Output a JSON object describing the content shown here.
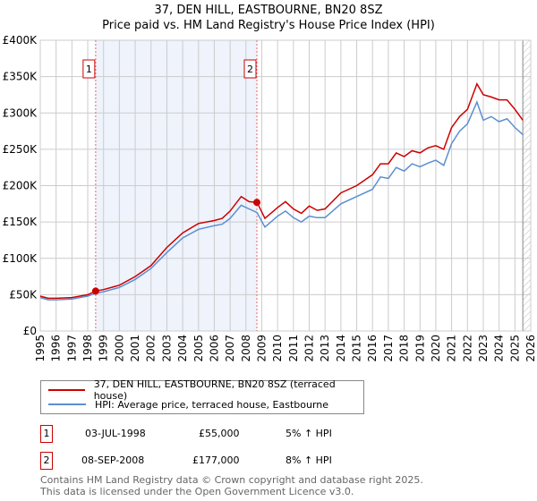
{
  "header": {
    "title_line1": "37, DEN HILL, EASTBOURNE, BN20 8SZ",
    "title_line2": "Price paid vs. HM Land Registry's House Price Index (HPI)"
  },
  "legend": {
    "red_label": "37, DEN HILL, EASTBOURNE, BN20 8SZ (terraced house)",
    "blue_label": "HPI: Average price, terraced house, Eastbourne"
  },
  "transactions": [
    {
      "num": "1",
      "date": "03-JUL-1998",
      "price": "£55,000",
      "hpi": "5% ↑ HPI"
    },
    {
      "num": "2",
      "date": "08-SEP-2008",
      "price": "£177,000",
      "hpi": "8% ↑ HPI"
    }
  ],
  "footer": {
    "line1": "Contains HM Land Registry data © Crown copyright and database right 2025.",
    "line2": "This data is licensed under the Open Government Licence v3.0."
  },
  "colors": {
    "red": "#cc0000",
    "blue": "#5b8fd0",
    "shade": "#eef3fc"
  },
  "chart_data": {
    "type": "line",
    "title": "Price paid vs. HM Land Registry's House Price Index (HPI)",
    "xlim": [
      1995,
      2026
    ],
    "ylim": [
      0,
      400000
    ],
    "x_ticks": [
      "1995",
      "1996",
      "1997",
      "1998",
      "1999",
      "2000",
      "2001",
      "2002",
      "2003",
      "2004",
      "2005",
      "2006",
      "2007",
      "2008",
      "2009",
      "2010",
      "2011",
      "2012",
      "2013",
      "2014",
      "2015",
      "2016",
      "2017",
      "2018",
      "2019",
      "2020",
      "2021",
      "2022",
      "2023",
      "2024",
      "2025",
      "2026"
    ],
    "y_ticks": [
      {
        "v": 0,
        "label": "£0"
      },
      {
        "v": 50000,
        "label": "£50K"
      },
      {
        "v": 100000,
        "label": "£100K"
      },
      {
        "v": 150000,
        "label": "£150K"
      },
      {
        "v": 200000,
        "label": "£200K"
      },
      {
        "v": 250000,
        "label": "£250K"
      },
      {
        "v": 300000,
        "label": "£300K"
      },
      {
        "v": 350000,
        "label": "£350K"
      },
      {
        "v": 400000,
        "label": "£400K"
      }
    ],
    "shaded_range": [
      1998.5,
      2008.69
    ],
    "hatch_from": 2025.5,
    "markers": [
      {
        "label": "1",
        "x": 1998.5,
        "y": 55000
      },
      {
        "label": "2",
        "x": 2008.69,
        "y": 177000
      }
    ],
    "series": [
      {
        "name": "37, DEN HILL, EASTBOURNE, BN20 8SZ (terraced house)",
        "color": "#cc0000",
        "x": [
          1995,
          1995.5,
          1996,
          1997,
          1998,
          1998.5,
          1999,
          2000,
          2001,
          2002,
          2003,
          2003.5,
          2004,
          2005,
          2006,
          2006.5,
          2007,
          2007.7,
          2008.2,
          2008.7,
          2009.2,
          2010,
          2010.5,
          2011,
          2011.5,
          2012,
          2012.5,
          2013,
          2014,
          2015,
          2016,
          2016.5,
          2017,
          2017.5,
          2018,
          2018.5,
          2019,
          2019.5,
          2020,
          2020.5,
          2021,
          2021.5,
          2022,
          2022.6,
          2023,
          2023.5,
          2024,
          2024.5,
          2025,
          2025.5
        ],
        "y": [
          48000,
          45000,
          45000,
          46000,
          50000,
          55000,
          57000,
          63000,
          75000,
          90000,
          115000,
          125000,
          135000,
          148000,
          152000,
          155000,
          165000,
          185000,
          178000,
          177000,
          155000,
          170000,
          178000,
          168000,
          162000,
          172000,
          166000,
          168000,
          190000,
          200000,
          215000,
          230000,
          230000,
          245000,
          240000,
          248000,
          245000,
          252000,
          255000,
          250000,
          280000,
          295000,
          305000,
          340000,
          325000,
          322000,
          318000,
          318000,
          305000,
          290000
        ]
      },
      {
        "name": "HPI: Average price, terraced house, Eastbourne",
        "color": "#5b8fd0",
        "x": [
          1995,
          1995.5,
          1996,
          1997,
          1998,
          1998.5,
          1999,
          2000,
          2001,
          2002,
          2003,
          2003.5,
          2004,
          2005,
          2006,
          2006.5,
          2007,
          2007.7,
          2008.2,
          2008.7,
          2009.2,
          2010,
          2010.5,
          2011,
          2011.5,
          2012,
          2012.5,
          2013,
          2014,
          2015,
          2016,
          2016.5,
          2017,
          2017.5,
          2018,
          2018.5,
          2019,
          2019.5,
          2020,
          2020.5,
          2021,
          2021.5,
          2022,
          2022.6,
          2023,
          2023.5,
          2024,
          2024.5,
          2025,
          2025.5
        ],
        "y": [
          46000,
          43000,
          43000,
          44000,
          48000,
          52000,
          54000,
          60000,
          71000,
          86000,
          108000,
          118000,
          128000,
          140000,
          145000,
          147000,
          155000,
          173000,
          168000,
          163000,
          143000,
          158000,
          165000,
          156000,
          150000,
          158000,
          156000,
          156000,
          175000,
          185000,
          195000,
          212000,
          210000,
          225000,
          220000,
          230000,
          226000,
          231000,
          235000,
          228000,
          258000,
          275000,
          285000,
          315000,
          290000,
          295000,
          288000,
          292000,
          280000,
          270000
        ]
      }
    ]
  }
}
